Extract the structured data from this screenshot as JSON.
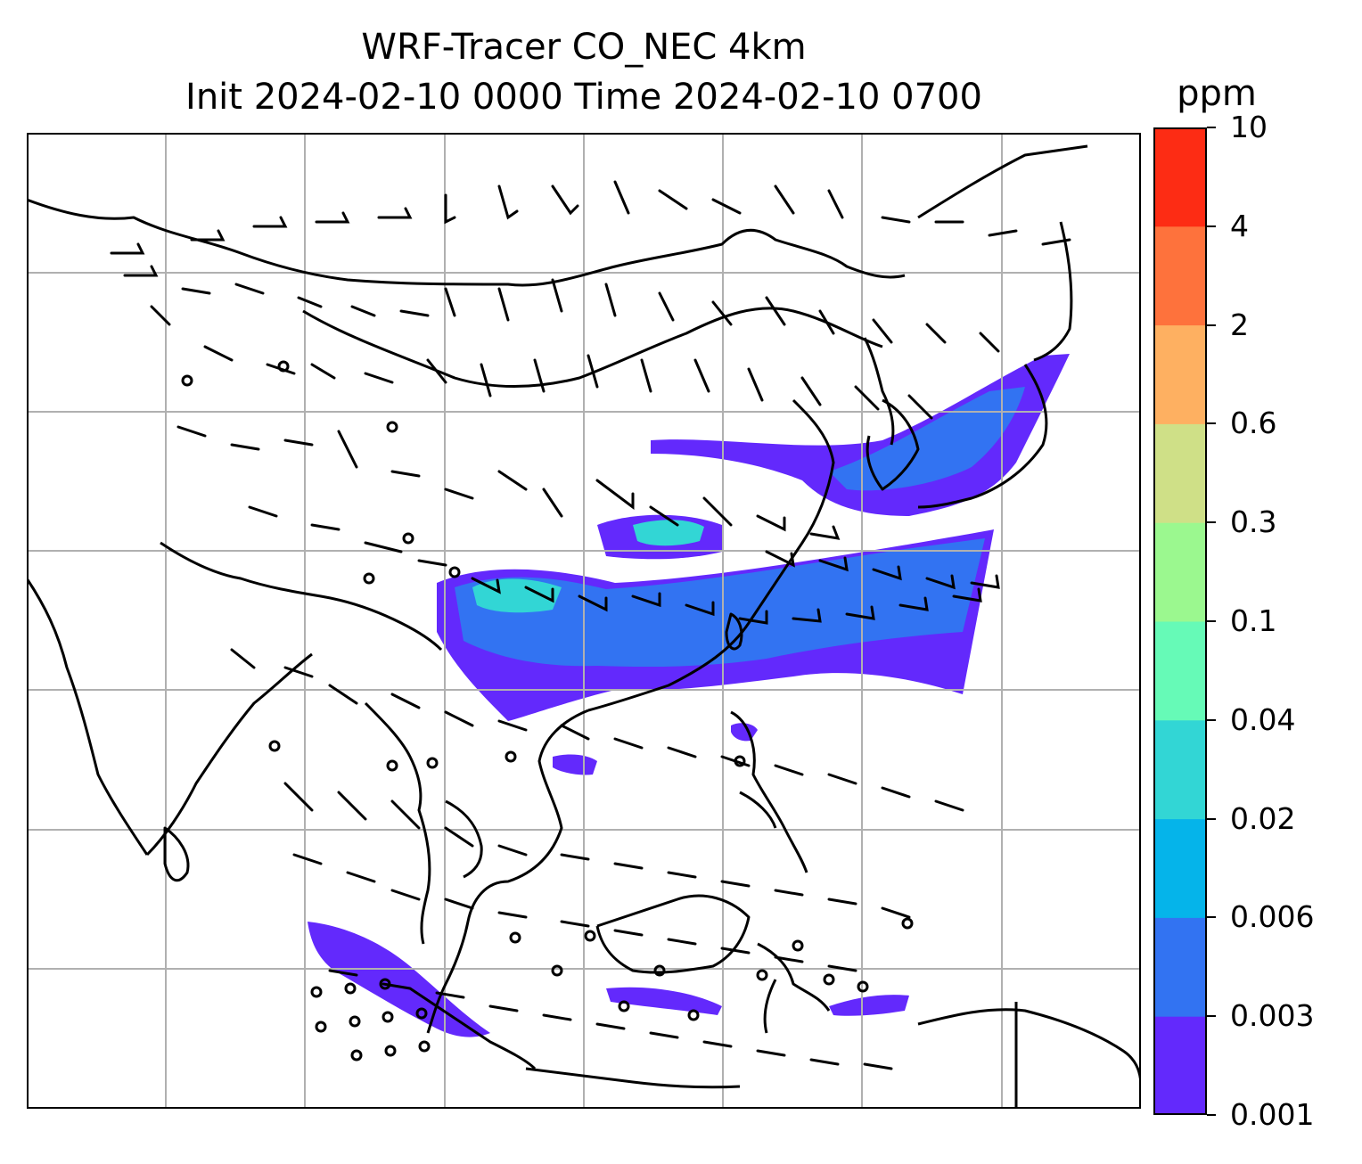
{
  "title": {
    "line1": "WRF-Tracer CO_NEC 4km",
    "line2": "Init 2024-02-10 0000 Time 2024-02-10 0700"
  },
  "colorbar": {
    "unit": "ppm",
    "levels": [
      "0.001",
      "0.003",
      "0.006",
      "0.02",
      "0.04",
      "0.1",
      "0.3",
      "0.6",
      "2",
      "4",
      "10"
    ],
    "colors": [
      "#6329fc",
      "#3273f2",
      "#05b4ea",
      "#32d6d5",
      "#66fab7",
      "#9bf88f",
      "#cfe087",
      "#feb061",
      "#fe723c",
      "#fd2c14"
    ]
  },
  "map": {
    "variable": "CO_NEC tracer concentration",
    "overlay": "wind barbs",
    "gridlines": true,
    "coastlines_color": "#000000",
    "plume_color_low": "#6329fc",
    "plume_color_mid": "#3273f2",
    "plume_color_high": "#32d6d5"
  }
}
